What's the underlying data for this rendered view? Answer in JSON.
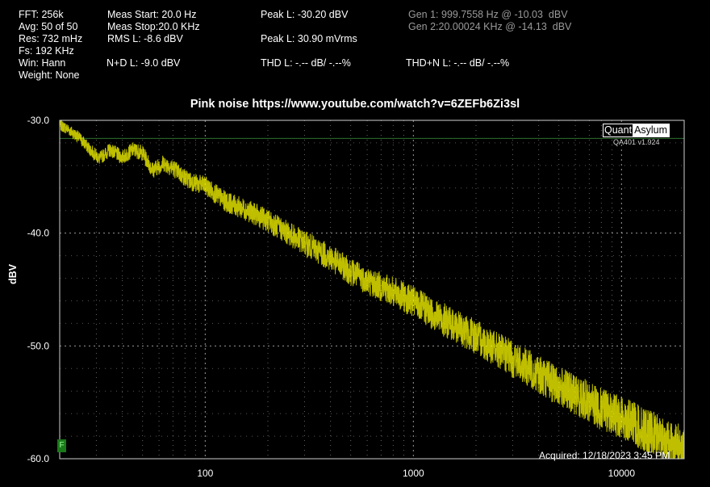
{
  "stats": {
    "fft": "FFT: 256k",
    "avg": "Avg: 50 of 50",
    "res": "Res: 732 mHz",
    "fs": "Fs: 192 KHz",
    "win": "Win: Hann",
    "weight": "Weight: None",
    "meas_start": "Meas Start: 20.0 Hz",
    "meas_stop": "Meas Stop:20.0 KHz",
    "rms_l": "RMS L: -8.6 dBV",
    "nd_l": "N+D L: -9.0 dBV",
    "peak_l_dbv": "Peak L: -30.20 dBV",
    "peak_l_mvrms": "Peak L: 30.90 mVrms",
    "thd_l": "THD L: -.-- dB/ -.--%",
    "gen1": "Gen 1: 999.7558 Hz @ -10.03  dBV",
    "gen2": "Gen 2:20.00024 KHz @ -14.13  dBV",
    "thdn_l": "THD+N L: -.-- dB/ -.--%"
  },
  "logo": {
    "part1": "Quant",
    "part2": "Asylum"
  },
  "version": "QA401 v1.924",
  "acquired": "Acquired: 12/18/2023  3:45 PM",
  "marker_f": "F",
  "colors": {
    "trace": "#ffff00",
    "grid": "#aaaaaa",
    "peak_line": "#2f6f2f",
    "background": "#000000"
  },
  "chart_data": {
    "type": "line",
    "title": "Pink noise https://www.youtube.com/watch?v=6ZEFb6Zi3sl",
    "xlabel": "",
    "ylabel": "dBV",
    "x_scale": "log",
    "xlim": [
      20,
      20000
    ],
    "ylim": [
      -60,
      -30
    ],
    "x_ticks": [
      {
        "value": 100,
        "label": "100"
      },
      {
        "value": 1000,
        "label": "1000"
      },
      {
        "value": 10000,
        "label": "10000"
      }
    ],
    "y_ticks": [
      {
        "value": -30,
        "label": "-30.0"
      },
      {
        "value": -40,
        "label": "-40.0"
      },
      {
        "value": -50,
        "label": "-50.0"
      },
      {
        "value": -60,
        "label": "-60.0"
      }
    ],
    "peak_marker_dbv": -31.6,
    "series": [
      {
        "x": [
          20,
          22,
          25,
          28,
          31,
          35,
          40,
          45,
          50,
          56,
          63,
          71,
          80,
          90,
          100,
          125,
          160,
          200,
          250,
          315,
          400,
          500,
          630,
          800,
          1000,
          1250,
          1600,
          2000,
          2500,
          3150,
          4000,
          5000,
          6300,
          8000,
          10000,
          12500,
          16000,
          20000
        ],
        "y": [
          -30.4,
          -30.8,
          -31.6,
          -32.6,
          -33.4,
          -32.6,
          -33.3,
          -32.6,
          -32.9,
          -34.4,
          -33.8,
          -34.3,
          -35.1,
          -35.6,
          -35.8,
          -37.2,
          -38.0,
          -38.9,
          -40.0,
          -41.1,
          -42.2,
          -43.4,
          -44.4,
          -45.2,
          -46.1,
          -47.2,
          -48.3,
          -49.2,
          -50.3,
          -51.4,
          -52.5,
          -53.6,
          -54.5,
          -55.6,
          -56.3,
          -57.3,
          -58.3,
          -59.2
        ]
      }
    ]
  }
}
